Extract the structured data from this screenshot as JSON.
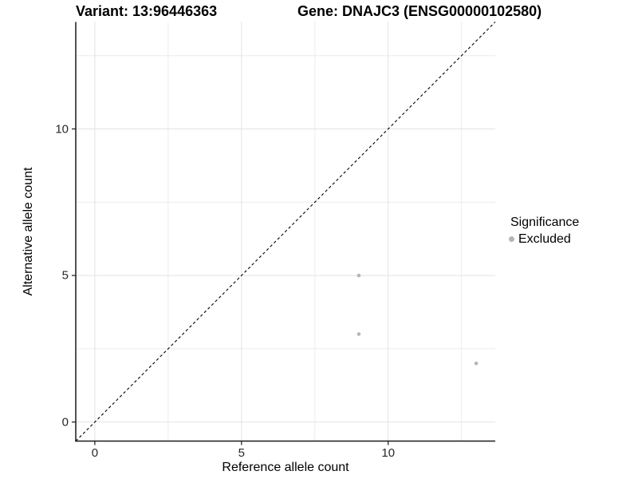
{
  "header": {
    "variant_title": "Variant: 13:96446363",
    "gene_title": "Gene: DNAJC3 (ENSG00000102580)"
  },
  "legend": {
    "title": "Significance",
    "items": [
      {
        "label": "Excluded",
        "color": "#b5b5b5"
      }
    ]
  },
  "chart_data": {
    "type": "scatter",
    "title": "",
    "xlabel": "Reference allele count",
    "ylabel": "Alternative allele count",
    "xlim": [
      -0.65,
      13.65
    ],
    "ylim": [
      -0.65,
      13.65
    ],
    "x_ticks": [
      0,
      5,
      10
    ],
    "y_ticks": [
      0,
      5,
      10
    ],
    "x_minor_ticks": [
      2.5,
      7.5,
      12.5
    ],
    "y_minor_ticks": [
      2.5,
      7.5,
      12.5
    ],
    "grid": true,
    "legend_position": "right",
    "series": [
      {
        "name": "Excluded",
        "color": "#b5b5b5",
        "points": [
          [
            9,
            5
          ],
          [
            9,
            3
          ],
          [
            13,
            2
          ]
        ]
      }
    ],
    "reference_line": {
      "type": "identity (y = x)",
      "style": "dashed",
      "color": "#000000",
      "from": [
        -0.65,
        -0.65
      ],
      "to": [
        13.65,
        13.65
      ]
    }
  },
  "colors": {
    "background": "#ffffff",
    "grid_major": "#e2e2e2",
    "grid_minor": "#ececec",
    "axis_line": "#1a1a1a",
    "tick_mark": "#1a1a1a",
    "text": "#000000",
    "point": "#b5b5b5"
  }
}
